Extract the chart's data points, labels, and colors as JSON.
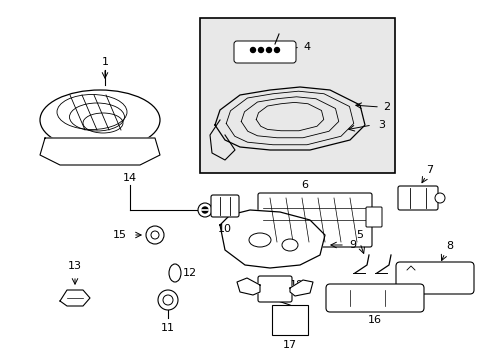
{
  "background_color": "#ffffff",
  "line_color": "#000000",
  "inset_bg": "#e8e8e8",
  "fig_width": 4.89,
  "fig_height": 3.6,
  "dpi": 100
}
